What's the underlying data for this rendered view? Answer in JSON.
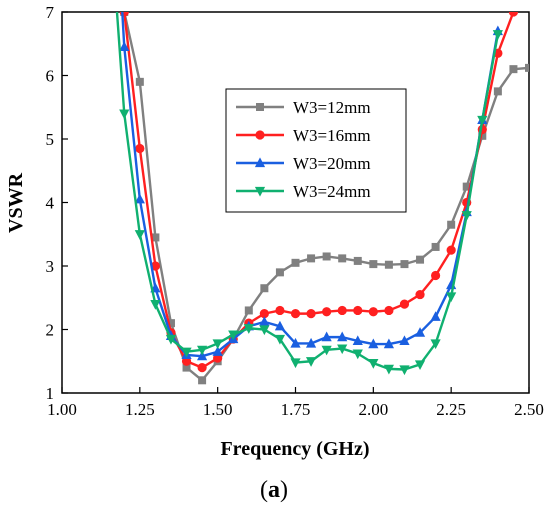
{
  "chart_data": {
    "type": "line",
    "xlabel": "Frequency (GHz)",
    "ylabel": "VSWR",
    "xlim": [
      1.0,
      2.5
    ],
    "ylim": [
      1,
      7
    ],
    "xticks": [
      "1.00",
      "1.25",
      "1.50",
      "1.75",
      "2.00",
      "2.25",
      "2.50"
    ],
    "yticks": [
      "1",
      "2",
      "3",
      "4",
      "5",
      "6",
      "7"
    ],
    "grid": false,
    "legend_position": "center",
    "caption": {
      "open": "(",
      "letter": "a",
      "close": ")"
    },
    "series": [
      {
        "name": "W3=12mm",
        "color": "#808080",
        "marker": "square",
        "x": [
          1.2,
          1.25,
          1.3,
          1.35,
          1.4,
          1.45,
          1.5,
          1.55,
          1.6,
          1.65,
          1.7,
          1.75,
          1.8,
          1.85,
          1.9,
          1.95,
          2.0,
          2.05,
          2.1,
          2.15,
          2.2,
          2.25,
          2.3,
          2.35,
          2.4,
          2.45,
          2.5
        ],
        "y": [
          7.0,
          5.9,
          3.45,
          2.1,
          1.4,
          1.2,
          1.5,
          1.85,
          2.3,
          2.65,
          2.9,
          3.05,
          3.12,
          3.15,
          3.12,
          3.08,
          3.03,
          3.02,
          3.03,
          3.1,
          3.3,
          3.65,
          4.25,
          5.05,
          5.75,
          6.1,
          6.12
        ]
      },
      {
        "name": "W3=16mm",
        "color": "#ff2020",
        "marker": "circle",
        "x": [
          1.2,
          1.25,
          1.3,
          1.35,
          1.4,
          1.45,
          1.5,
          1.55,
          1.6,
          1.65,
          1.7,
          1.75,
          1.8,
          1.85,
          1.9,
          1.95,
          2.0,
          2.05,
          2.1,
          2.15,
          2.2,
          2.25,
          2.3,
          2.35,
          2.4,
          2.45
        ],
        "y": [
          7.0,
          4.85,
          3.0,
          1.95,
          1.5,
          1.4,
          1.55,
          1.85,
          2.1,
          2.25,
          2.3,
          2.25,
          2.25,
          2.28,
          2.3,
          2.3,
          2.28,
          2.3,
          2.4,
          2.55,
          2.85,
          3.25,
          4.0,
          5.15,
          6.35,
          7.0
        ]
      },
      {
        "name": "W3=20mm",
        "color": "#1a5fe0",
        "marker": "triangle-up",
        "x": [
          1.2,
          1.25,
          1.3,
          1.35,
          1.4,
          1.45,
          1.5,
          1.55,
          1.6,
          1.65,
          1.7,
          1.75,
          1.8,
          1.85,
          1.9,
          1.95,
          2.0,
          2.05,
          2.1,
          2.15,
          2.2,
          2.25,
          2.3,
          2.35,
          2.4
        ],
        "y": [
          6.45,
          4.05,
          2.65,
          1.9,
          1.6,
          1.58,
          1.65,
          1.85,
          2.05,
          2.12,
          2.05,
          1.78,
          1.78,
          1.88,
          1.88,
          1.82,
          1.77,
          1.77,
          1.82,
          1.95,
          2.2,
          2.7,
          3.85,
          5.3,
          6.7
        ]
      },
      {
        "name": "W3=24mm",
        "color": "#10b070",
        "marker": "triangle-down",
        "x": [
          1.2,
          1.25,
          1.3,
          1.35,
          1.4,
          1.45,
          1.5,
          1.55,
          1.6,
          1.65,
          1.7,
          1.75,
          1.8,
          1.85,
          1.9,
          1.95,
          2.0,
          2.05,
          2.1,
          2.15,
          2.2,
          2.25,
          2.3,
          2.35,
          2.4
        ],
        "y": [
          5.4,
          3.5,
          2.4,
          1.85,
          1.65,
          1.68,
          1.78,
          1.92,
          2.02,
          2.0,
          1.85,
          1.48,
          1.5,
          1.68,
          1.7,
          1.62,
          1.47,
          1.38,
          1.37,
          1.45,
          1.78,
          2.52,
          3.8,
          5.3,
          6.65
        ]
      }
    ]
  }
}
